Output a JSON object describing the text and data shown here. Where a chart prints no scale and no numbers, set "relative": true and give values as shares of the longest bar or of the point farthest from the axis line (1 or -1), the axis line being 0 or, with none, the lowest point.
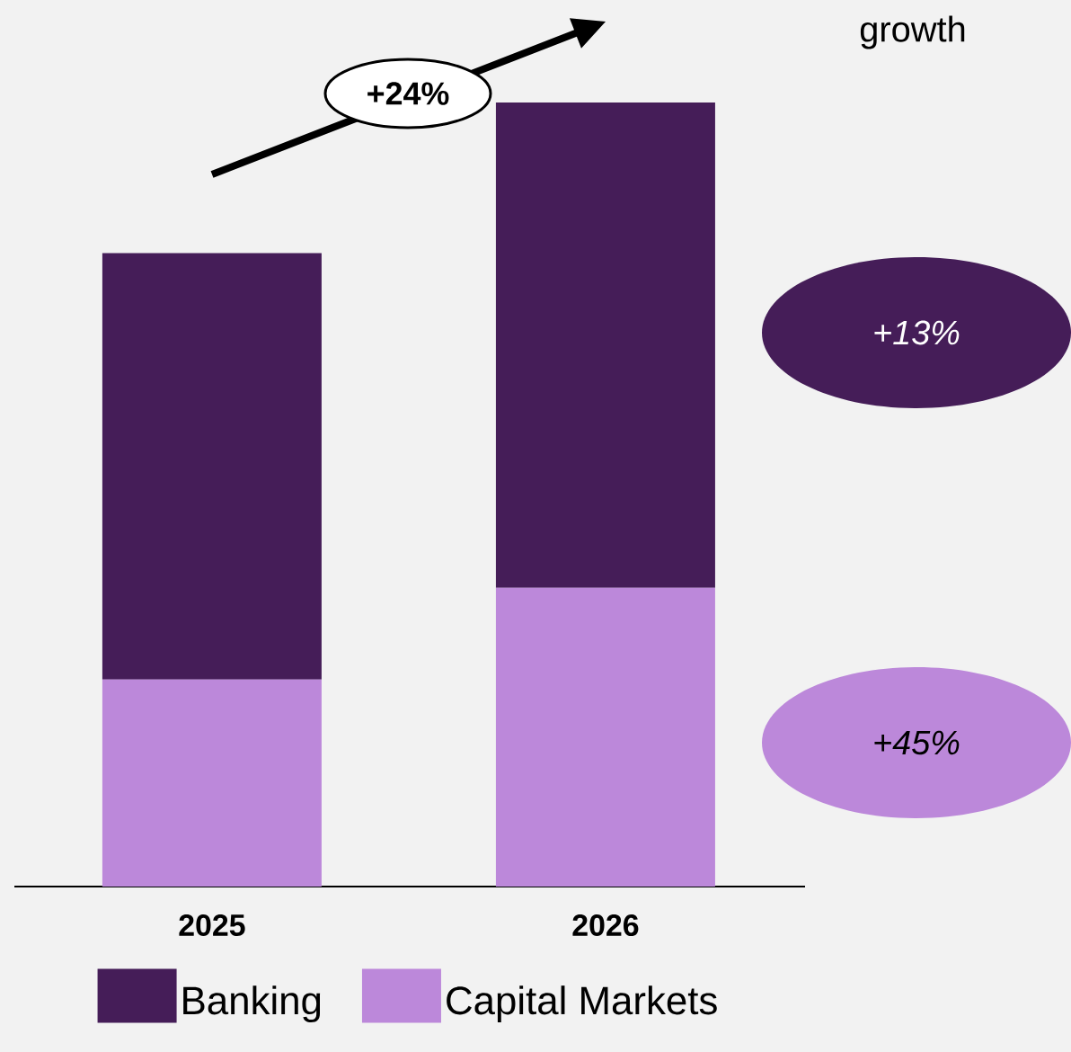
{
  "chart_data": {
    "type": "bar",
    "stacked": true,
    "relative": true,
    "categories": [
      "2025",
      "2026"
    ],
    "series": [
      {
        "name": "Capital Markets",
        "color": "#bc88da",
        "values": [
          0.264,
          0.381
        ]
      },
      {
        "name": "Banking",
        "color": "#451d58",
        "values": [
          0.544,
          0.619
        ]
      }
    ],
    "legend": "bottom",
    "annotations": [
      "growth",
      "+24%",
      "+13%",
      "+45%"
    ]
  }
}
